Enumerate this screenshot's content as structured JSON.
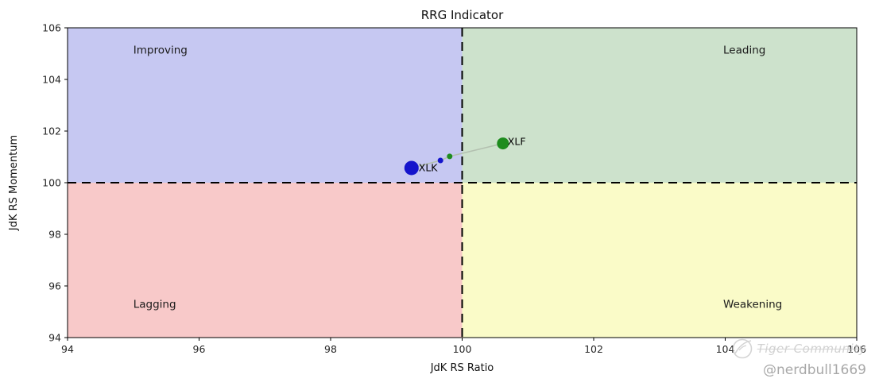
{
  "title": "RRG Indicator",
  "watermark": {
    "brand": "Tiger Community",
    "handle": "@nerdbull1669"
  },
  "chart_data": {
    "type": "scatter",
    "title": "RRG Indicator",
    "xlabel": "JdK RS Ratio",
    "ylabel": "JdK RS Momentum",
    "xlim": [
      94,
      106
    ],
    "ylim": [
      94,
      106
    ],
    "xticks": [
      94,
      96,
      98,
      100,
      102,
      104,
      106
    ],
    "yticks": [
      94,
      96,
      98,
      100,
      102,
      104,
      106
    ],
    "grid": false,
    "crosshair": {
      "x": 100,
      "y": 100,
      "color": "#000000",
      "style": "dashed"
    },
    "quadrants": [
      {
        "name": "Improving",
        "x": [
          94,
          100
        ],
        "y": [
          100,
          106
        ],
        "color": "#c6c8f2",
        "label_pos": [
          95.0,
          105.0
        ]
      },
      {
        "name": "Leading",
        "x": [
          100,
          106
        ],
        "y": [
          100,
          106
        ],
        "color": "#cde2cc",
        "label_pos": [
          103.97,
          105.0
        ]
      },
      {
        "name": "Lagging",
        "x": [
          94,
          100
        ],
        "y": [
          94,
          100
        ],
        "color": "#f8c9c9",
        "label_pos": [
          95.0,
          95.15
        ]
      },
      {
        "name": "Weakening",
        "x": [
          100,
          106
        ],
        "y": [
          94,
          100
        ],
        "color": "#fafbc8",
        "label_pos": [
          103.97,
          95.15
        ]
      }
    ],
    "trail_line": {
      "color": "#b3c0b0",
      "points": [
        [
          99.23,
          100.57
        ],
        [
          99.67,
          100.86
        ],
        [
          99.81,
          101.02
        ],
        [
          100.62,
          101.52
        ]
      ]
    },
    "series": [
      {
        "name": "XLK",
        "color": "#1414cc",
        "trail": [
          {
            "x": 99.67,
            "y": 100.86,
            "r": 3.5
          },
          {
            "x": 99.23,
            "y": 100.57,
            "r": 9
          }
        ],
        "label_offset": [
          9,
          4
        ]
      },
      {
        "name": "XLF",
        "color": "#1e8c1e",
        "trail": [
          {
            "x": 99.81,
            "y": 101.02,
            "r": 3.5
          },
          {
            "x": 100.62,
            "y": 101.52,
            "r": 7.5
          }
        ],
        "label_offset": [
          6,
          2
        ]
      }
    ]
  }
}
